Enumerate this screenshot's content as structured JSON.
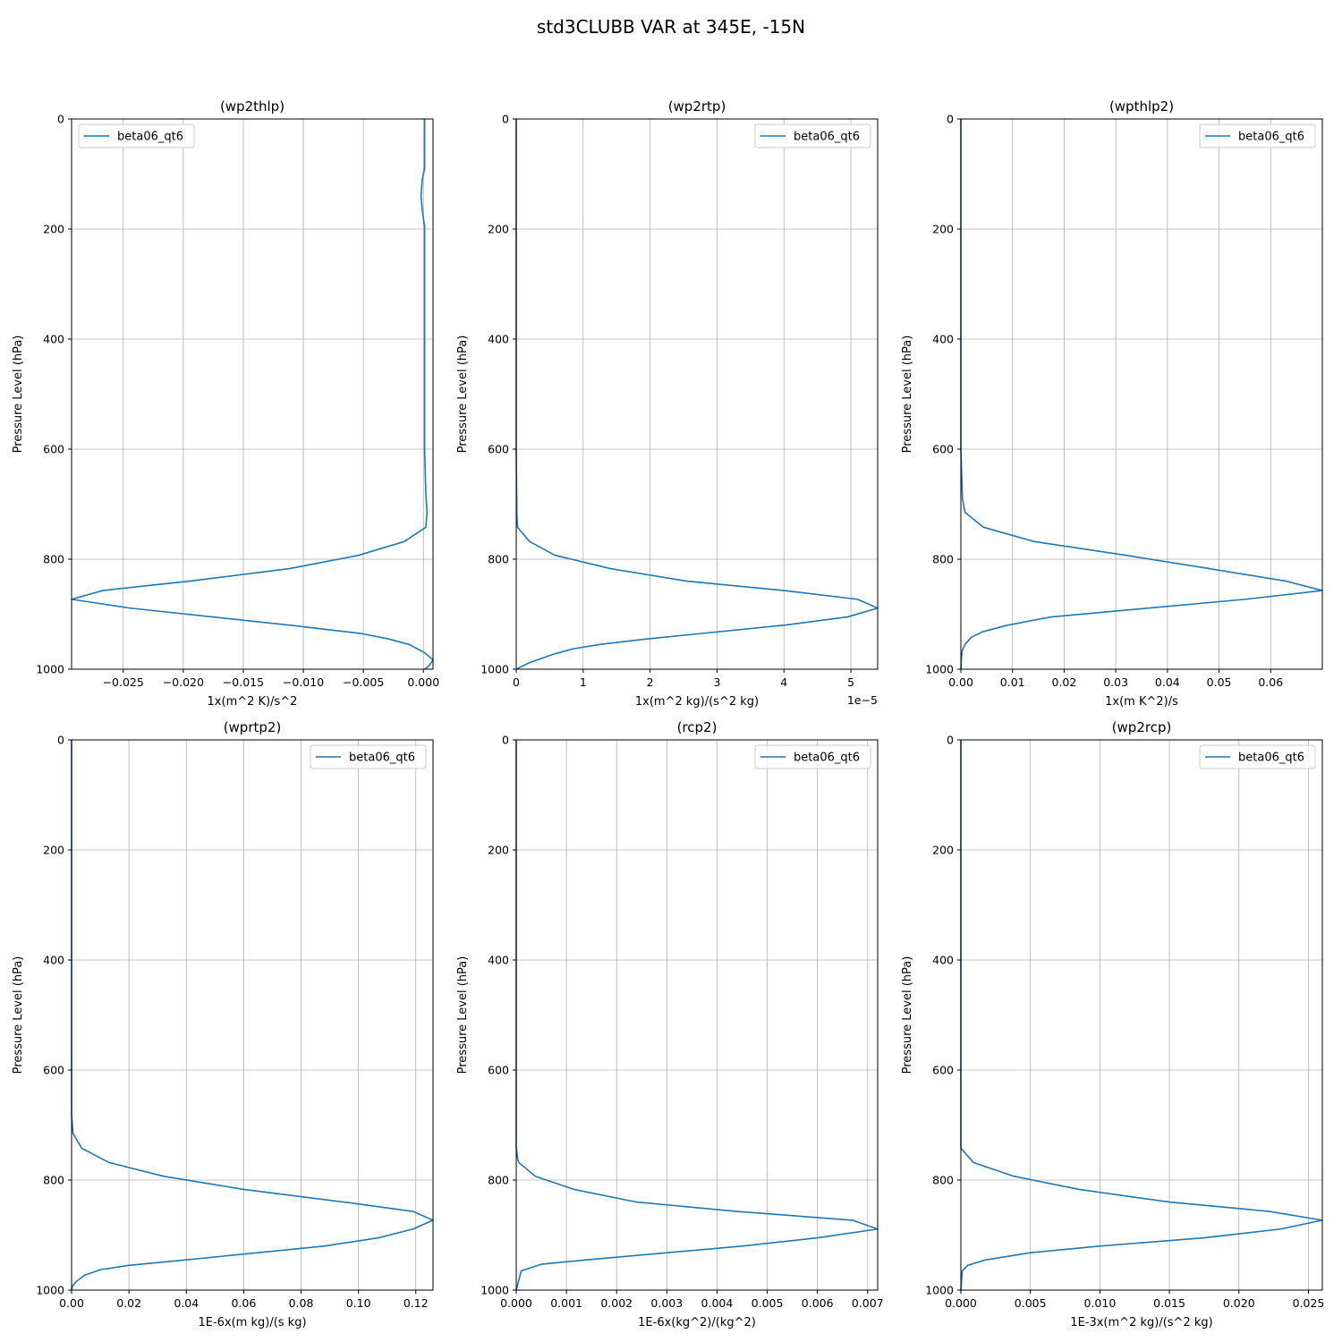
{
  "figure": {
    "title": "std3CLUBB VAR at 345E, -15N",
    "line_color": "#1f77b4",
    "grid_color": "#b0b0b0"
  },
  "chart_data": [
    {
      "type": "line",
      "title": "(wp2thlp)",
      "xlabel": "1x(m^2 K)/s^2",
      "ylabel": "Pressure Level (hPa)",
      "xlim": [
        -0.0293,
        0.0008
      ],
      "ylim": [
        1000,
        0
      ],
      "xticks": [
        -0.025,
        -0.02,
        -0.015,
        -0.01,
        -0.005,
        0.0
      ],
      "xticklabels": [
        "−0.025",
        "−0.020",
        "−0.015",
        "−0.010",
        "−0.005",
        "0.000"
      ],
      "yticks": [
        0,
        200,
        400,
        600,
        800,
        1000
      ],
      "offset_text": "",
      "grid": true,
      "legend": "upper left",
      "series": [
        {
          "name": "beta06_qt6",
          "x": [
            0.0001,
            0.0001,
            -0.0001,
            -0.0002,
            -0.0001,
            0.0001,
            0.0001,
            0.0001,
            0.0001,
            0.0002,
            0.0003,
            0.0002,
            -0.0016,
            -0.0054,
            -0.0111,
            -0.0195,
            -0.0267,
            -0.0293,
            -0.0244,
            -0.0111,
            -0.0052,
            -0.0029,
            -0.0012,
            0.0001,
            0.0008,
            0.0005,
            0.0001
          ],
          "y": [
            0,
            90,
            110,
            140,
            165,
            195,
            250,
            400,
            600,
            680,
            715,
            742,
            768,
            793,
            817,
            840,
            857,
            873,
            889,
            920,
            935,
            945,
            955,
            970,
            983,
            993,
            1000
          ]
        }
      ]
    },
    {
      "type": "line",
      "title": "(wp2rtp)",
      "xlabel": "1x(m^2 kg)/(s^2 kg)",
      "ylabel": "Pressure Level (hPa)",
      "xlim": [
        0,
        5.4
      ],
      "ylim": [
        1000,
        0
      ],
      "xticks": [
        0,
        1,
        2,
        3,
        4,
        5
      ],
      "xticklabels": [
        "0",
        "1",
        "2",
        "3",
        "4",
        "5"
      ],
      "yticks": [
        0,
        200,
        400,
        600,
        800,
        1000
      ],
      "offset_text": "1e−5",
      "grid": true,
      "legend": "upper right",
      "series": [
        {
          "name": "beta06_qt6",
          "x": [
            0,
            0,
            0.01,
            0.02,
            0.2,
            0.58,
            1.4,
            2.55,
            4.0,
            5.1,
            5.4,
            4.95,
            4.0,
            1.95,
            1.25,
            0.85,
            0.55,
            0.2,
            0
          ],
          "y": [
            0,
            600,
            720,
            742,
            768,
            793,
            817,
            840,
            857,
            873,
            889,
            905,
            920,
            945,
            955,
            963,
            973,
            988,
            1000
          ]
        }
      ]
    },
    {
      "type": "line",
      "title": "(wpthlp2)",
      "xlabel": "1x(m K^2)/s",
      "ylabel": "Pressure Level (hPa)",
      "xlim": [
        0,
        0.07
      ],
      "ylim": [
        1000,
        0
      ],
      "xticks": [
        0.0,
        0.01,
        0.02,
        0.03,
        0.04,
        0.05,
        0.06
      ],
      "xticklabels": [
        "0.00",
        "0.01",
        "0.02",
        "0.03",
        "0.04",
        "0.05",
        "0.06"
      ],
      "yticks": [
        0,
        200,
        400,
        600,
        800,
        1000
      ],
      "offset_text": "",
      "grid": true,
      "legend": "upper right",
      "series": [
        {
          "name": "beta06_qt6",
          "x": [
            0,
            0,
            0.0003,
            0.0008,
            0.0044,
            0.0142,
            0.032,
            0.048,
            0.063,
            0.07,
            0.055,
            0.0175,
            0.009,
            0.0042,
            0.002,
            0.0008,
            0.0003,
            0.0001,
            0
          ],
          "y": [
            0,
            600,
            690,
            715,
            742,
            768,
            793,
            817,
            840,
            857,
            873,
            905,
            920,
            932,
            942,
            955,
            965,
            980,
            1000
          ]
        }
      ]
    },
    {
      "type": "line",
      "title": "(wprtp2)",
      "xlabel": "1E-6x(m kg)/(s kg)",
      "ylabel": "Pressure Level (hPa)",
      "xlim": [
        0,
        0.126
      ],
      "ylim": [
        1000,
        0
      ],
      "xticks": [
        0.0,
        0.02,
        0.04,
        0.06,
        0.08,
        0.1,
        0.12
      ],
      "xticklabels": [
        "0.00",
        "0.02",
        "0.04",
        "0.06",
        "0.08",
        "0.10",
        "0.12"
      ],
      "yticks": [
        0,
        200,
        400,
        600,
        800,
        1000
      ],
      "offset_text": "",
      "grid": true,
      "legend": "upper right",
      "series": [
        {
          "name": "beta06_qt6",
          "x": [
            0,
            0,
            0.0005,
            0.0035,
            0.013,
            0.032,
            0.06,
            0.095,
            0.119,
            0.126,
            0.119,
            0.107,
            0.088,
            0.04,
            0.02,
            0.01,
            0.0045,
            0.0015,
            0.0003,
            0
          ],
          "y": [
            0,
            680,
            715,
            742,
            768,
            793,
            817,
            840,
            857,
            873,
            889,
            905,
            920,
            945,
            955,
            963,
            973,
            985,
            993,
            1000
          ]
        }
      ]
    },
    {
      "type": "line",
      "title": "(rcp2)",
      "xlabel": "1E-6x(kg^2)/(kg^2)",
      "ylabel": "Pressure Level (hPa)",
      "xlim": [
        0,
        0.0072
      ],
      "ylim": [
        1000,
        0
      ],
      "xticks": [
        0.0,
        0.001,
        0.002,
        0.003,
        0.004,
        0.005,
        0.006,
        0.007
      ],
      "xticklabels": [
        "0.000",
        "0.001",
        "0.002",
        "0.003",
        "0.004",
        "0.005",
        "0.006",
        "0.007"
      ],
      "yticks": [
        0,
        200,
        400,
        600,
        800,
        1000
      ],
      "offset_text": "",
      "grid": true,
      "legend": "upper right",
      "series": [
        {
          "name": "beta06_qt6",
          "x": [
            0,
            0,
            3e-05,
            5e-05,
            0.00038,
            0.00115,
            0.0024,
            0.0044,
            0.0067,
            0.0072,
            0.006,
            0.0045,
            0.0014,
            0.0005,
            0.0001,
            0
          ],
          "y": [
            0,
            740,
            762,
            768,
            793,
            817,
            840,
            857,
            873,
            889,
            905,
            920,
            945,
            953,
            965,
            1000
          ]
        }
      ]
    },
    {
      "type": "line",
      "title": "(wp2rcp)",
      "xlabel": "1E-3x(m^2 kg)/(s^2 kg)",
      "ylabel": "Pressure Level (hPa)",
      "xlim": [
        0,
        0.026
      ],
      "ylim": [
        1000,
        0
      ],
      "xticks": [
        0.0,
        0.005,
        0.01,
        0.015,
        0.02,
        0.025
      ],
      "xticklabels": [
        "0.000",
        "0.005",
        "0.010",
        "0.015",
        "0.020",
        "0.025"
      ],
      "yticks": [
        0,
        200,
        400,
        600,
        800,
        1000
      ],
      "offset_text": "",
      "grid": true,
      "legend": "upper right",
      "series": [
        {
          "name": "beta06_qt6",
          "x": [
            0,
            0,
            0.0009,
            0.0038,
            0.0085,
            0.015,
            0.0222,
            0.026,
            0.023,
            0.0175,
            0.01,
            0.005,
            0.0018,
            0.0005,
            0.0001,
            0
          ],
          "y": [
            0,
            742,
            768,
            793,
            817,
            840,
            857,
            873,
            889,
            905,
            920,
            932,
            945,
            955,
            965,
            1000
          ]
        }
      ]
    }
  ]
}
